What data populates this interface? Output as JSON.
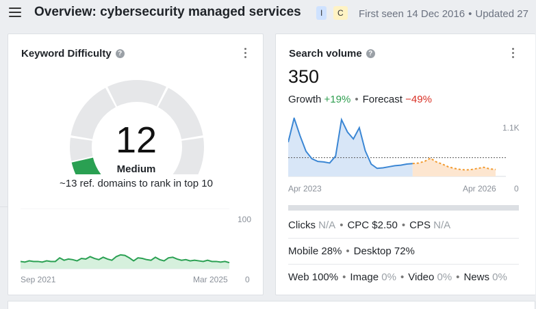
{
  "header": {
    "title": "Overview: cybersecurity managed services",
    "badge_i": "I",
    "badge_c": "C",
    "first_seen": "First seen 14 Dec 2016",
    "updated": "Updated 27"
  },
  "kd_card": {
    "title": "Keyword Difficulty",
    "value": "12",
    "level": "Medium",
    "subtitle": "~13 ref. domains to rank in top 10",
    "gauge_fraction": 0.12,
    "chart_data": {
      "type": "area",
      "x_start_label": "Sep 2021",
      "x_end_label": "Mar 2025",
      "ylim": [
        0,
        100
      ],
      "y_top_label": "100",
      "y_bottom_label": "0",
      "values": [
        12,
        11,
        13,
        12,
        12,
        11,
        13,
        12,
        12,
        18,
        14,
        16,
        15,
        13,
        17,
        16,
        20,
        17,
        15,
        19,
        16,
        14,
        20,
        23,
        22,
        18,
        13,
        18,
        17,
        15,
        14,
        19,
        15,
        13,
        18,
        19,
        16,
        14,
        15,
        13,
        14,
        13,
        12,
        14,
        12,
        12,
        11,
        12,
        10
      ]
    }
  },
  "sv_card": {
    "title": "Search volume",
    "value": "350",
    "growth_label": "Growth",
    "growth_value": "+19%",
    "forecast_label": "Forecast",
    "forecast_value": "−49%",
    "chart_data": {
      "type": "line",
      "x_start_label": "Apr 2023",
      "x_end_label": "Apr 2026",
      "ylim": [
        0,
        1100
      ],
      "y_top_label": "1.1K",
      "y_bottom_label": "0",
      "average": 350,
      "actual": [
        640,
        1090,
        760,
        470,
        330,
        280,
        270,
        250,
        380,
        1060,
        830,
        700,
        910,
        480,
        230,
        150,
        160,
        180,
        200,
        210,
        230,
        240
      ],
      "forecast": [
        240,
        250,
        280,
        340,
        270,
        230,
        180,
        150,
        130,
        120,
        130,
        150,
        170,
        140,
        130
      ]
    },
    "stats": {
      "clicks_label": "Clicks",
      "clicks_value": "N/A",
      "cpc_label": "CPC",
      "cpc_value": "$2.50",
      "cps_label": "CPS",
      "cps_value": "N/A",
      "mobile": "Mobile 28%",
      "desktop": "Desktop 72%",
      "web_label": "Web",
      "web_value": "100%",
      "image_label": "Image",
      "image_value": "0%",
      "video_label": "Video",
      "video_value": "0%",
      "news_label": "News",
      "news_value": "0%"
    },
    "colors": {
      "line": "#3a86d4",
      "forecast": "#f29a2e",
      "fill": "#d8e6f7",
      "forecast_fill": "#fde6d0"
    }
  },
  "colors": {
    "kd_green": "#2aa052",
    "gauge_grey": "#e6e7e9"
  }
}
